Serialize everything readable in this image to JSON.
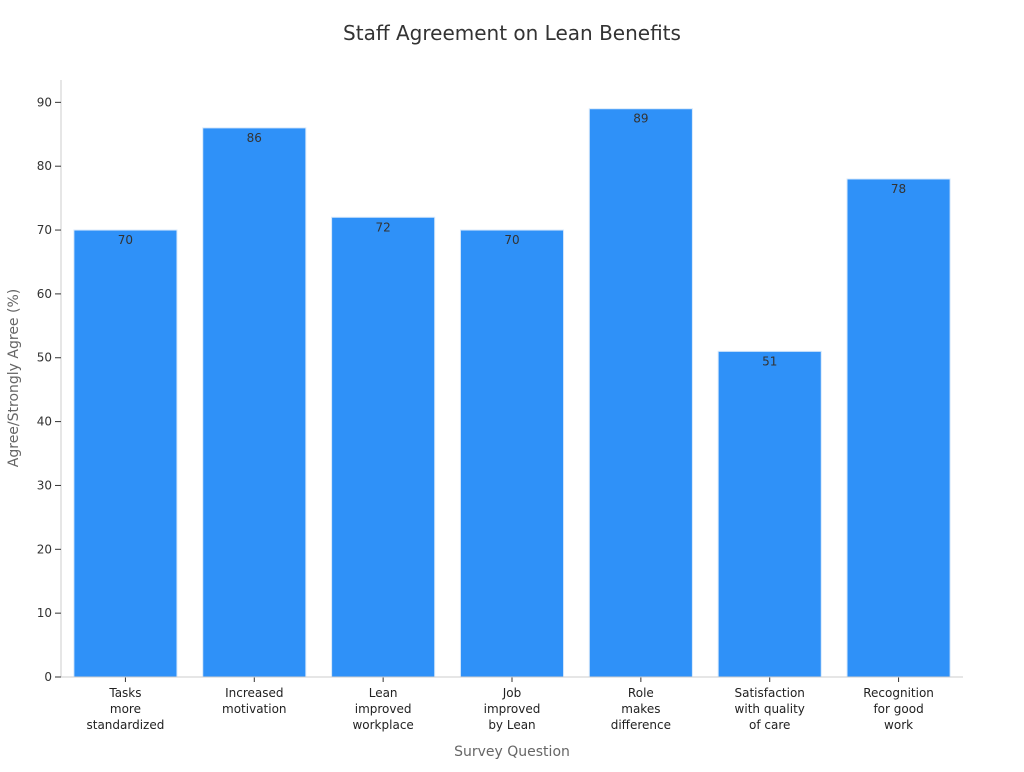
{
  "chart_data": {
    "type": "bar",
    "title": "Staff Agreement on Lean Benefits",
    "xlabel": "Survey Question",
    "ylabel": "Agree/Strongly Agree (%)",
    "ylim": [
      0,
      93.5
    ],
    "yticks": [
      0,
      10,
      20,
      30,
      40,
      50,
      60,
      70,
      80,
      90
    ],
    "grid": false,
    "legend": "none",
    "categories": [
      [
        "Tasks",
        "more",
        "standardized"
      ],
      [
        "Increased",
        "motivation"
      ],
      [
        "Lean",
        "improved",
        "workplace"
      ],
      [
        "Job",
        "improved",
        "by Lean"
      ],
      [
        "Role",
        "makes",
        "difference"
      ],
      [
        "Satisfaction",
        "with quality",
        "of care"
      ],
      [
        "Recognition",
        "for good",
        "work"
      ]
    ],
    "values": [
      70,
      86,
      72,
      70,
      89,
      51,
      78
    ],
    "colors": {
      "bar": "#2f91f8",
      "axis": "#cccccc",
      "text": "#333333"
    }
  }
}
